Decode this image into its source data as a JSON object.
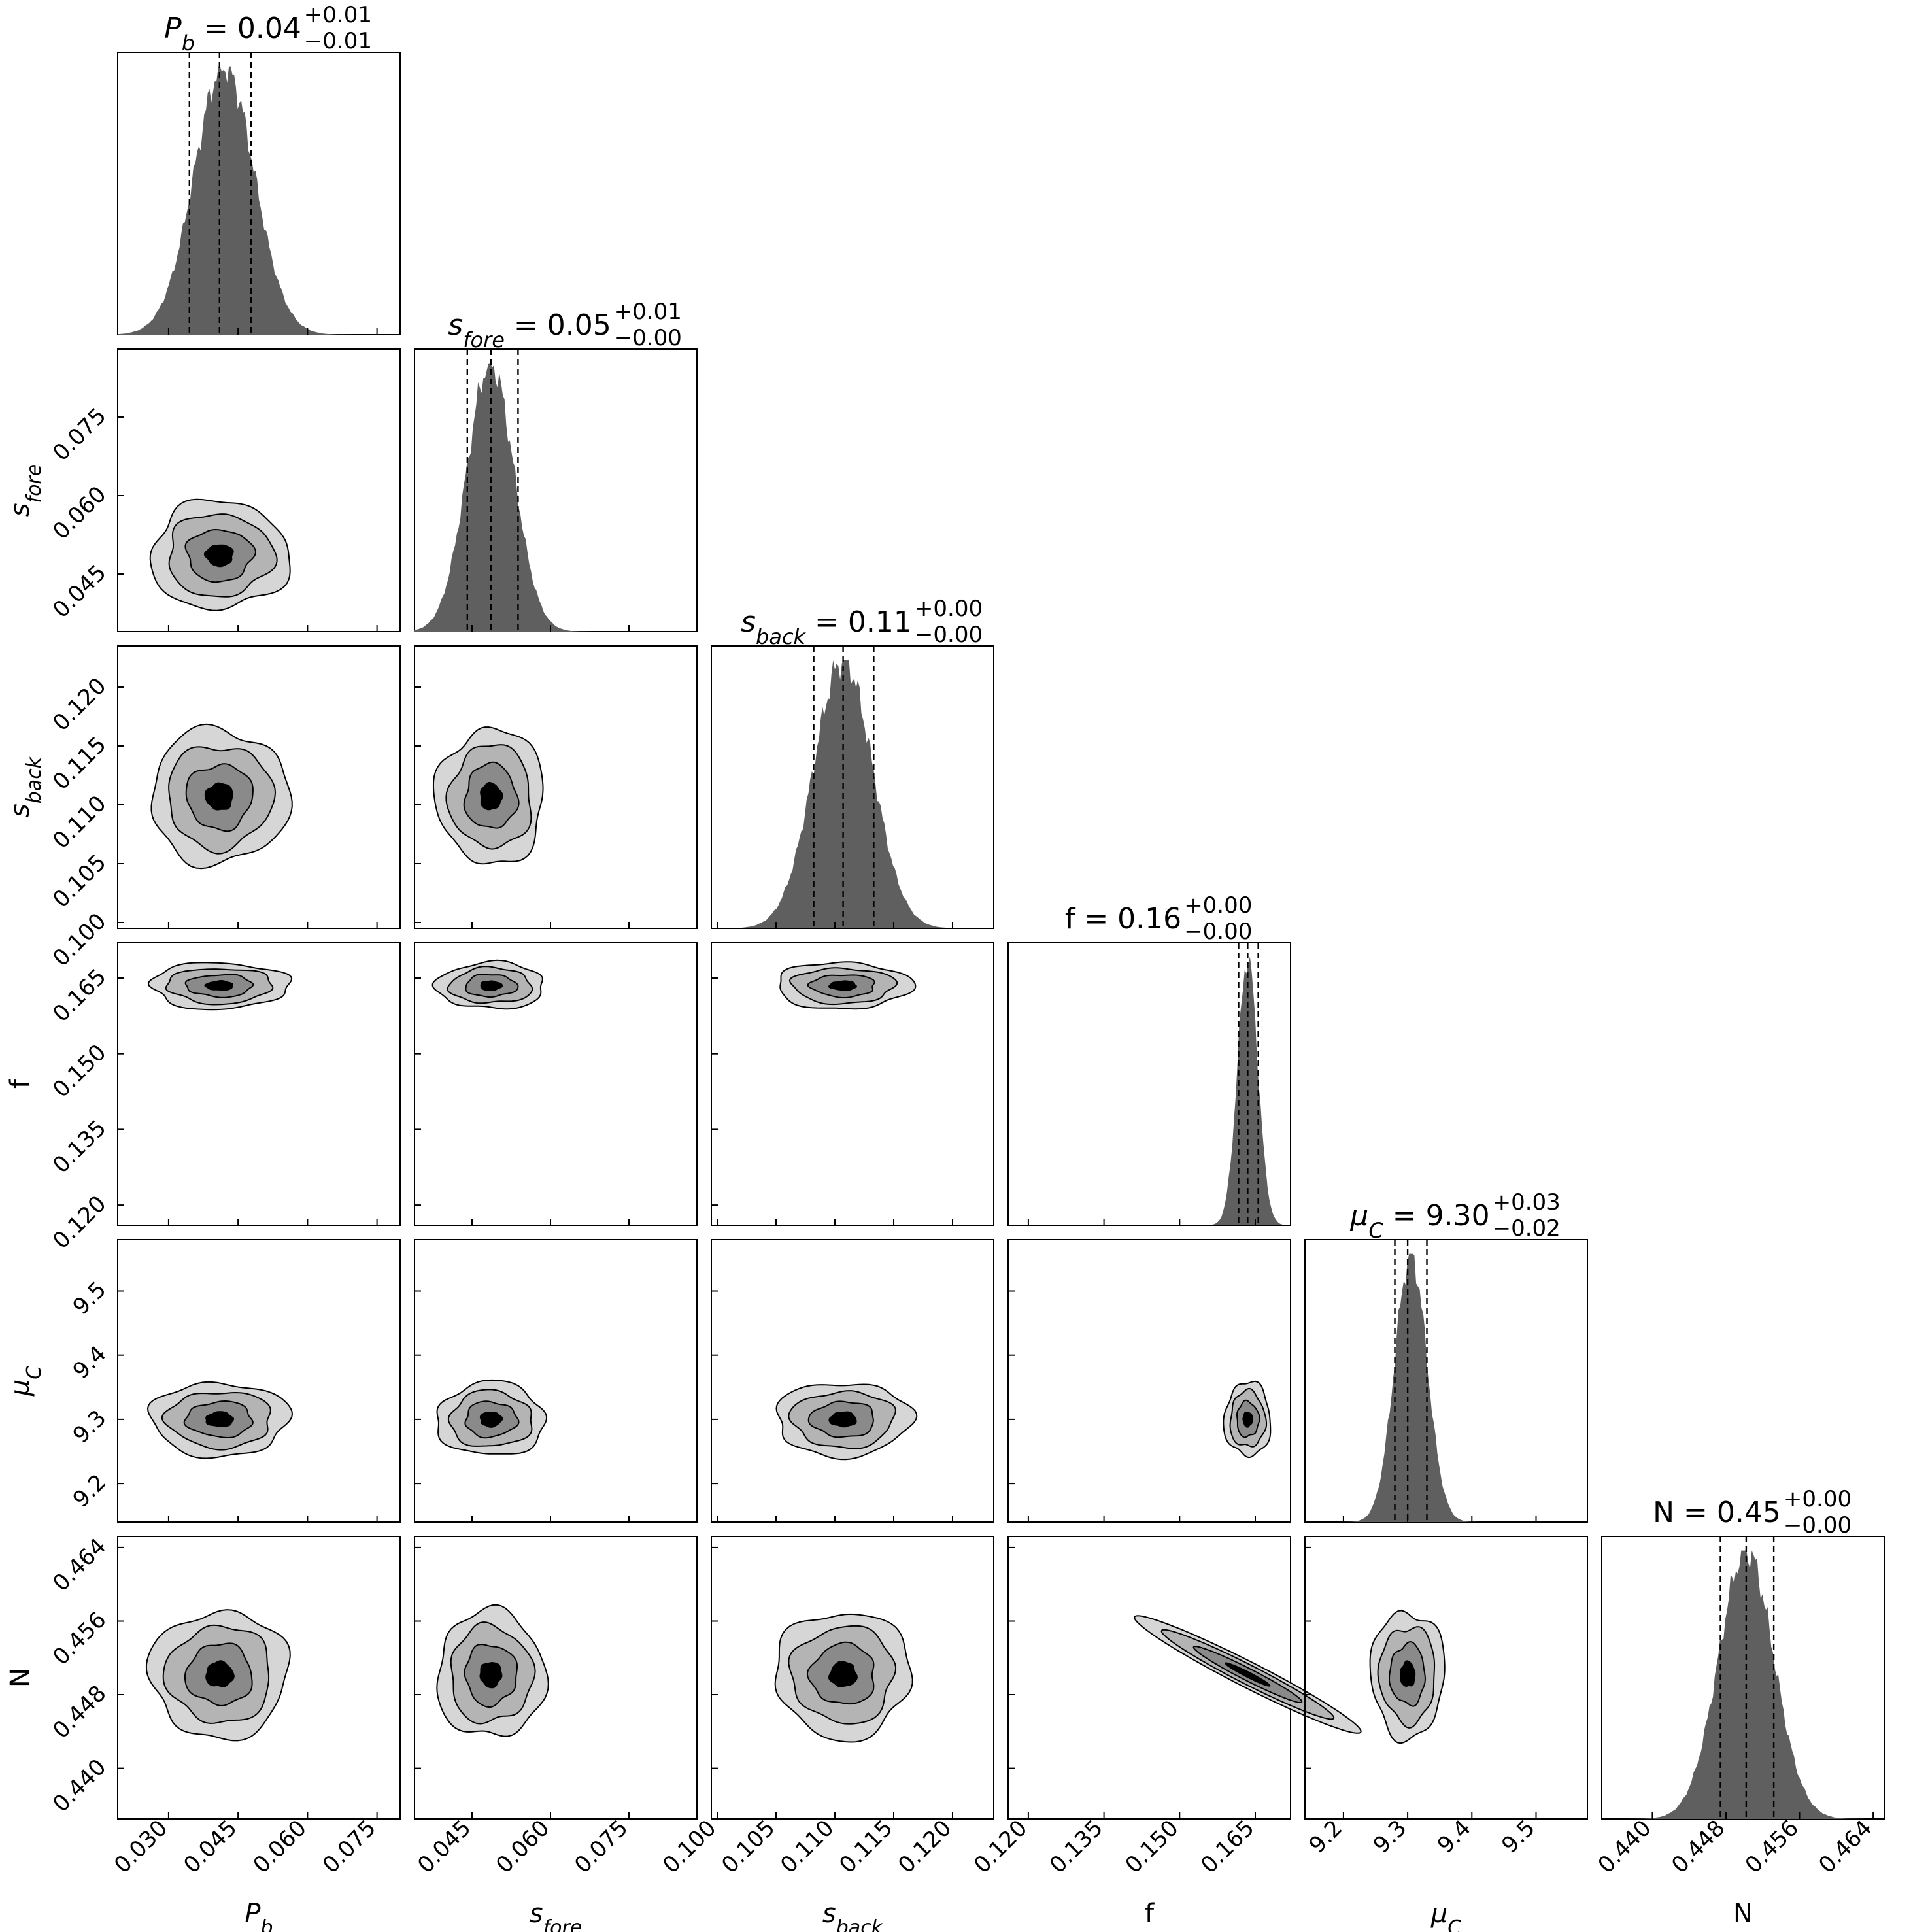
{
  "chart_data": {
    "type": "corner",
    "parameters": [
      {
        "id": "Pb",
        "label": "P",
        "sub": "b",
        "italic": true,
        "range": [
          0.019,
          0.08
        ],
        "ticks": [
          0.03,
          0.045,
          0.06,
          0.075
        ],
        "tick_labels": [
          "0.030",
          "0.045",
          "0.060",
          "0.075"
        ],
        "median": 0.041,
        "q16": 0.0345,
        "q84": 0.0478,
        "sigma": 0.0065,
        "peak": 0.042,
        "title_value": "0.04",
        "title_plus": "+0.01",
        "title_minus": "−0.01"
      },
      {
        "id": "sfore",
        "label": "s",
        "sub": "fore",
        "italic": true,
        "range": [
          0.034,
          0.088
        ],
        "ticks": [
          0.045,
          0.06,
          0.075
        ],
        "tick_labels": [
          "0.045",
          "0.060",
          "0.075"
        ],
        "median": 0.0486,
        "q16": 0.0441,
        "q84": 0.0538,
        "sigma": 0.0045,
        "peak": 0.0485,
        "title_value": "0.05",
        "title_plus": "+0.01",
        "title_minus": "−0.00"
      },
      {
        "id": "sback",
        "label": "s",
        "sub": "back",
        "italic": true,
        "range": [
          0.0995,
          0.1235
        ],
        "ticks": [
          0.1,
          0.105,
          0.11,
          0.115,
          0.12
        ],
        "tick_labels": [
          "0.100",
          "0.105",
          "0.110",
          "0.115",
          "0.120"
        ],
        "median": 0.1107,
        "q16": 0.1082,
        "q84": 0.1133,
        "sigma": 0.0025,
        "peak": 0.1107,
        "title_value": "0.11",
        "title_plus": "+0.00",
        "title_minus": "−0.00"
      },
      {
        "id": "f",
        "label": "f",
        "sub": "",
        "italic": false,
        "range": [
          0.116,
          0.172
        ],
        "ticks": [
          0.12,
          0.135,
          0.15,
          0.165
        ],
        "tick_labels": [
          "0.120",
          "0.135",
          "0.150",
          "0.165"
        ],
        "median": 0.1635,
        "q16": 0.1617,
        "q84": 0.1656,
        "sigma": 0.002,
        "peak": 0.1635,
        "title_value": "0.16",
        "title_plus": "+0.00",
        "title_minus": "−0.00"
      },
      {
        "id": "muC",
        "label": "μ",
        "sub": "C",
        "italic": true,
        "range": [
          9.14,
          9.58
        ],
        "ticks": [
          9.2,
          9.3,
          9.4,
          9.5
        ],
        "tick_labels": [
          "9.2",
          "9.3",
          "9.4",
          "9.5"
        ],
        "median": 9.3,
        "q16": 9.28,
        "q84": 9.33,
        "sigma": 0.025,
        "peak": 9.305,
        "title_value": "9.30",
        "title_plus": "+0.03",
        "title_minus": "−0.02"
      },
      {
        "id": "N",
        "label": "N",
        "sub": "",
        "italic": false,
        "range": [
          0.4345,
          0.4652
        ],
        "ticks": [
          0.44,
          0.448,
          0.456,
          0.464
        ],
        "tick_labels": [
          "0.440",
          "0.448",
          "0.456",
          "0.464"
        ],
        "median": 0.4502,
        "q16": 0.4474,
        "q84": 0.4532,
        "sigma": 0.003,
        "peak": 0.4502,
        "title_value": "0.45",
        "title_plus": "+0.00",
        "title_minus": "−0.00"
      }
    ],
    "contour_levels": 4,
    "contour_fill_colors": [
      "#d6d6d6",
      "#b4b4b4",
      "#8a8a8a",
      "#000000"
    ],
    "histogram_fill_color": "#5f5f5f",
    "grid": false,
    "legend": "none"
  }
}
